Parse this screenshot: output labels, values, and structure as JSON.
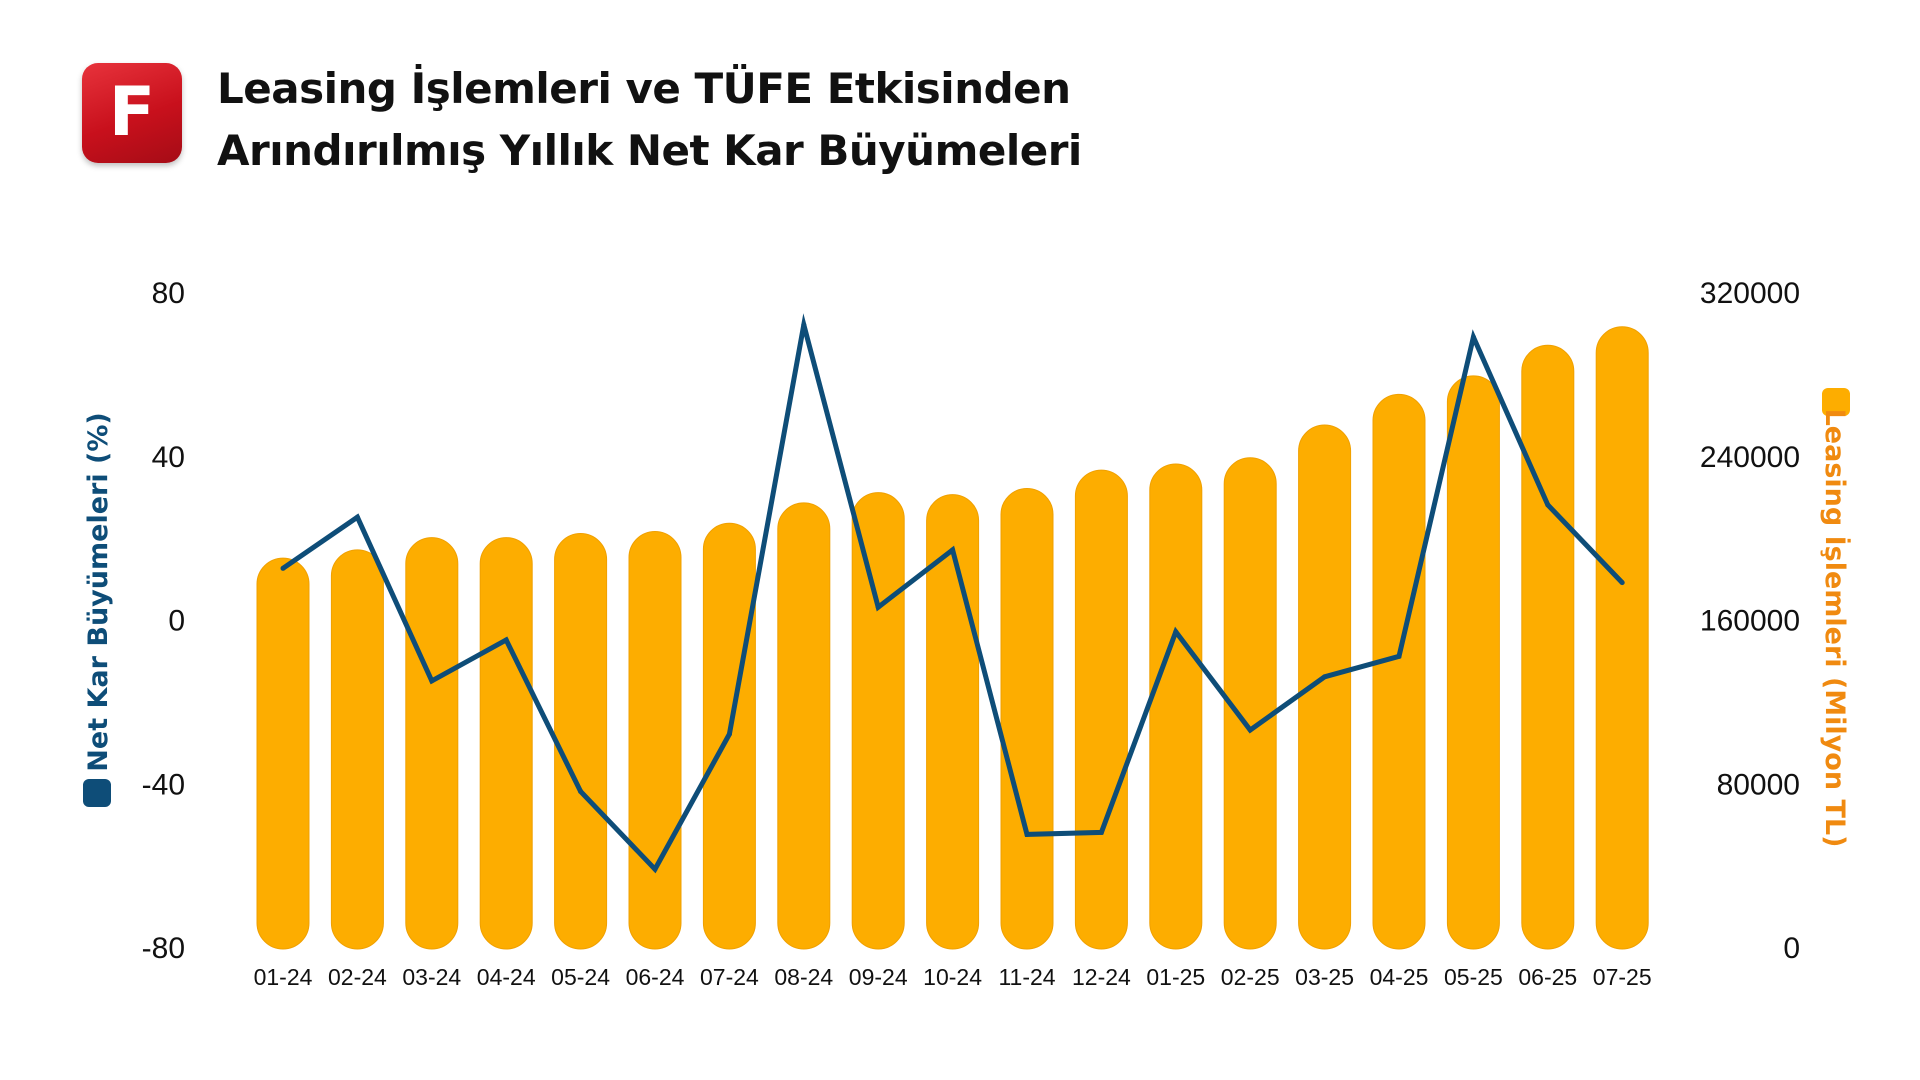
{
  "header": {
    "logo_letter": "F",
    "title_line1": "Leasing İşlemleri ve TÜFE Etkisinden",
    "title_line2": "Arındırılmış Yıllık Net Kar Büyümeleri"
  },
  "colors": {
    "bar": "#fdad00",
    "bar_border": "#f0a000",
    "line": "#0e4d78",
    "left_label": "#0e4d78",
    "right_label": "#f08a10",
    "logo": "#d11a24"
  },
  "chart_data": {
    "type": "bar+line",
    "categories": [
      "01-24",
      "02-24",
      "03-24",
      "04-24",
      "05-24",
      "06-24",
      "07-24",
      "08-24",
      "09-24",
      "10-24",
      "11-24",
      "12-24",
      "01-25",
      "02-25",
      "03-25",
      "04-25",
      "05-25",
      "06-25",
      "07-25"
    ],
    "bars": {
      "name": "Leasing İşlemleri (Milyon TL)",
      "axis": "right",
      "values": [
        190000,
        194000,
        200000,
        200000,
        202000,
        203000,
        207000,
        217000,
        222000,
        221000,
        224000,
        233000,
        236000,
        239000,
        255000,
        270000,
        279000,
        294000,
        303000
      ]
    },
    "line": {
      "name": "Net Kar Büyümeleri (%)",
      "axis": "left",
      "values": [
        12.5,
        25,
        -15,
        -5,
        -42,
        -61,
        -28,
        72,
        3,
        17,
        -52.5,
        -52,
        -3,
        -27,
        -14,
        -9,
        69,
        28,
        9
      ]
    },
    "left_axis": {
      "label": "Net Kar Büyümeleri (%)",
      "ylim": [
        -80,
        80
      ],
      "ticks": [
        "80",
        "40",
        "0",
        "-40",
        "-80"
      ]
    },
    "right_axis": {
      "label": "Leasing İşlemleri (Milyon TL)",
      "ylim": [
        0,
        320000
      ],
      "ticks": [
        "320000",
        "240000",
        "160000",
        "80000",
        "0"
      ]
    },
    "grid": false
  }
}
